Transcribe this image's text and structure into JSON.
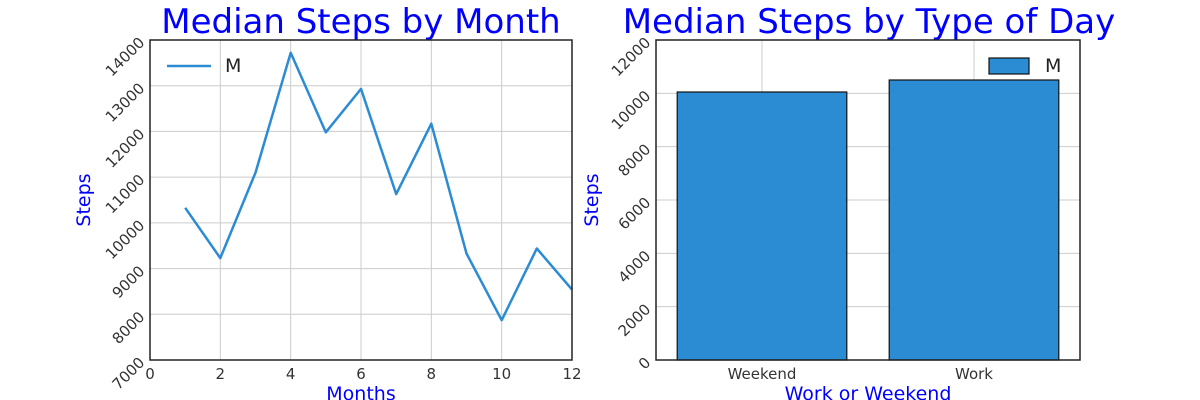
{
  "chart_data": [
    {
      "type": "line",
      "title": "Median Steps by Month",
      "xlabel": "Months",
      "ylabel": "Steps",
      "xlim": [
        0,
        12
      ],
      "ylim": [
        7000,
        14000
      ],
      "xticks": [
        0,
        2,
        4,
        6,
        8,
        10,
        12
      ],
      "yticks": [
        7000,
        8000,
        9000,
        10000,
        11000,
        12000,
        13000,
        14000
      ],
      "grid": true,
      "legend_position": "top-left",
      "series": [
        {
          "name": "M",
          "color": "#2b8cd3",
          "x": [
            1,
            2,
            3,
            4,
            5,
            6,
            7,
            8,
            9,
            10,
            11,
            12
          ],
          "y": [
            10330,
            9230,
            11100,
            13720,
            11980,
            12930,
            10630,
            12170,
            9330,
            7870,
            9440,
            8540
          ]
        }
      ]
    },
    {
      "type": "bar",
      "title": "Median Steps by Type of Day",
      "xlabel": "Work or Weekend",
      "ylabel": "Steps",
      "categories": [
        "Weekend",
        "Work"
      ],
      "ylim": [
        0,
        12000
      ],
      "yticks": [
        0,
        2000,
        4000,
        6000,
        8000,
        10000,
        12000
      ],
      "grid": true,
      "legend_position": "top-right",
      "series": [
        {
          "name": "M",
          "color": "#2b8cd3",
          "values": [
            10050,
            10500
          ]
        }
      ]
    }
  ]
}
